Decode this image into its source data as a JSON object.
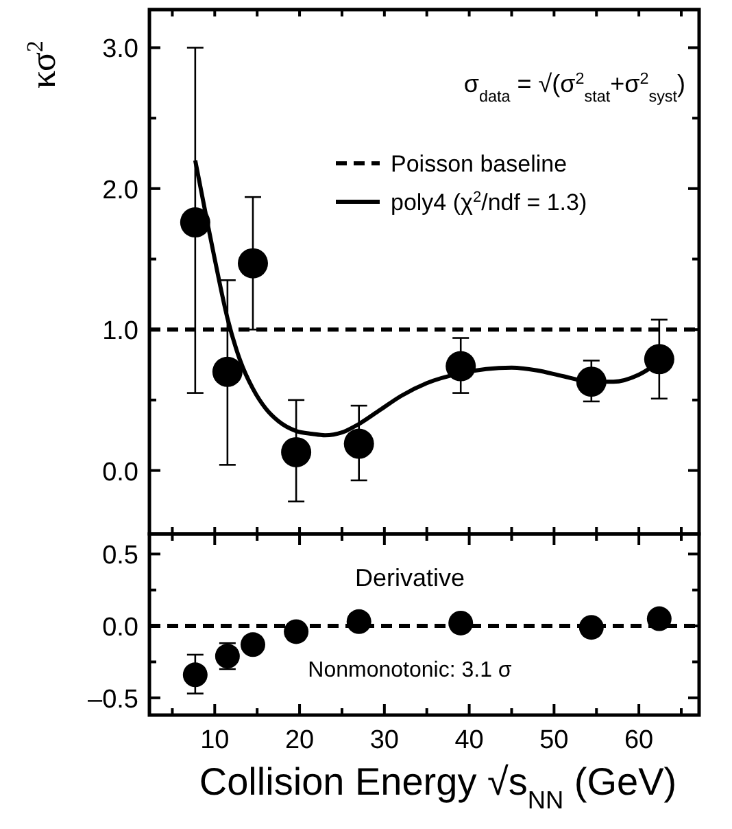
{
  "chart_data": [
    {
      "type": "scatter",
      "ylabel": "κσ$^{2}$",
      "xlim": [
        2.3,
        67.1
      ],
      "ylim": [
        -0.45,
        3.27
      ],
      "xticks": [
        {
          "value": 5,
          "label": null
        },
        {
          "value": 10,
          "label": null
        },
        {
          "value": 15,
          "label": null
        },
        {
          "value": 20,
          "label": null
        },
        {
          "value": 25,
          "label": null
        },
        {
          "value": 30,
          "label": null
        },
        {
          "value": 35,
          "label": null
        },
        {
          "value": 40,
          "label": null
        },
        {
          "value": 45,
          "label": null
        },
        {
          "value": 50,
          "label": null
        },
        {
          "value": 55,
          "label": null
        },
        {
          "value": 60,
          "label": null
        },
        {
          "value": 65,
          "label": null
        }
      ],
      "yticks": [
        {
          "value": 0,
          "label": "0.0"
        },
        {
          "value": 0.5,
          "label": null
        },
        {
          "value": 1,
          "label": "1.0"
        },
        {
          "value": 1.5,
          "label": null
        },
        {
          "value": 2,
          "label": "2.0"
        },
        {
          "value": 2.5,
          "label": null
        },
        {
          "value": 3,
          "label": "3.0"
        }
      ],
      "tick_labels": "y",
      "marker": "circle",
      "legend": "top right",
      "grid": false,
      "series": [
        {
          "color": "#000000",
          "x": [
            7.7,
            11.5,
            14.5,
            19.6,
            27,
            39,
            54.4,
            62.4
          ],
          "values": [
            1.76,
            0.7,
            1.47,
            0.13,
            0.19,
            0.74,
            0.63,
            0.79
          ],
          "errors": [
            [
              0.55,
              3.0
            ],
            [
              0.04,
              1.35
            ],
            [
              1.0,
              1.94
            ],
            [
              -0.22,
              0.5
            ],
            [
              -0.07,
              0.46
            ],
            [
              0.55,
              0.94
            ],
            [
              0.49,
              0.78
            ],
            [
              0.51,
              1.07
            ]
          ]
        },
        {
          "type": "line",
          "name": "poly4 (χ$^{2}$/ndf = 1.3)",
          "color": "#000000",
          "line_style": "solid",
          "marker": "none",
          "x": [
            7.7,
            9,
            10,
            11.5,
            13,
            14.5,
            16,
            17.5,
            19.6,
            21.5,
            23,
            25,
            27,
            29.5,
            32,
            35,
            39,
            42,
            45,
            48,
            51,
            54.4,
            57,
            60,
            62.4
          ],
          "values": [
            2.2,
            1.8,
            1.5,
            1.08,
            0.78,
            0.58,
            0.44,
            0.35,
            0.28,
            0.26,
            0.25,
            0.27,
            0.33,
            0.43,
            0.53,
            0.62,
            0.69,
            0.72,
            0.73,
            0.71,
            0.67,
            0.63,
            0.63,
            0.68,
            0.77
          ]
        }
      ],
      "ref_lines": [
        {
          "axis": "y",
          "value": 1,
          "label": "Poisson baseline",
          "color": "#000000",
          "line_style": "dashed"
        }
      ],
      "annotations": [
        "σ$_{data}$ = √(σ$^{2}$$_{stat}$+σ$^{2}$$_{syst}$)"
      ]
    },
    {
      "type": "scatter",
      "xlabel": "Collision Energy √s$_{NN}$ (GeV)",
      "xlim": [
        2.3,
        67.1
      ],
      "ylim": [
        -0.62,
        0.64
      ],
      "xticks": [
        {
          "value": 5,
          "label": null
        },
        10,
        {
          "value": 15,
          "label": null
        },
        20,
        {
          "value": 25,
          "label": null
        },
        30,
        {
          "value": 35,
          "label": null
        },
        40,
        {
          "value": 45,
          "label": null
        },
        50,
        {
          "value": 55,
          "label": null
        },
        60,
        {
          "value": 65,
          "label": null
        }
      ],
      "yticks": [
        {
          "value": -0.5,
          "label": "–0.5"
        },
        {
          "value": -0.25,
          "label": null
        },
        {
          "value": 0,
          "label": "0.0"
        },
        {
          "value": 0.25,
          "label": null
        },
        {
          "value": 0.5,
          "label": "0.5"
        }
      ],
      "marker": "circle",
      "grid": false,
      "series": [
        {
          "color": "#000000",
          "x": [
            7.7,
            11.5,
            14.5,
            19.6,
            27,
            39,
            54.4,
            62.4
          ],
          "values": [
            -0.34,
            -0.21,
            -0.13,
            -0.04,
            0.03,
            0.02,
            -0.01,
            0.05
          ],
          "errors": [
            [
              -0.47,
              -0.2
            ],
            [
              -0.3,
              -0.12
            ],
            null,
            null,
            null,
            null,
            null,
            null
          ]
        }
      ],
      "ref_lines": [
        {
          "axis": "y",
          "value": 0,
          "color": "#000000",
          "line_style": "dashed"
        }
      ],
      "annotations": [
        "Derivative",
        "Nonmonotonic: 3.1 σ"
      ]
    }
  ]
}
